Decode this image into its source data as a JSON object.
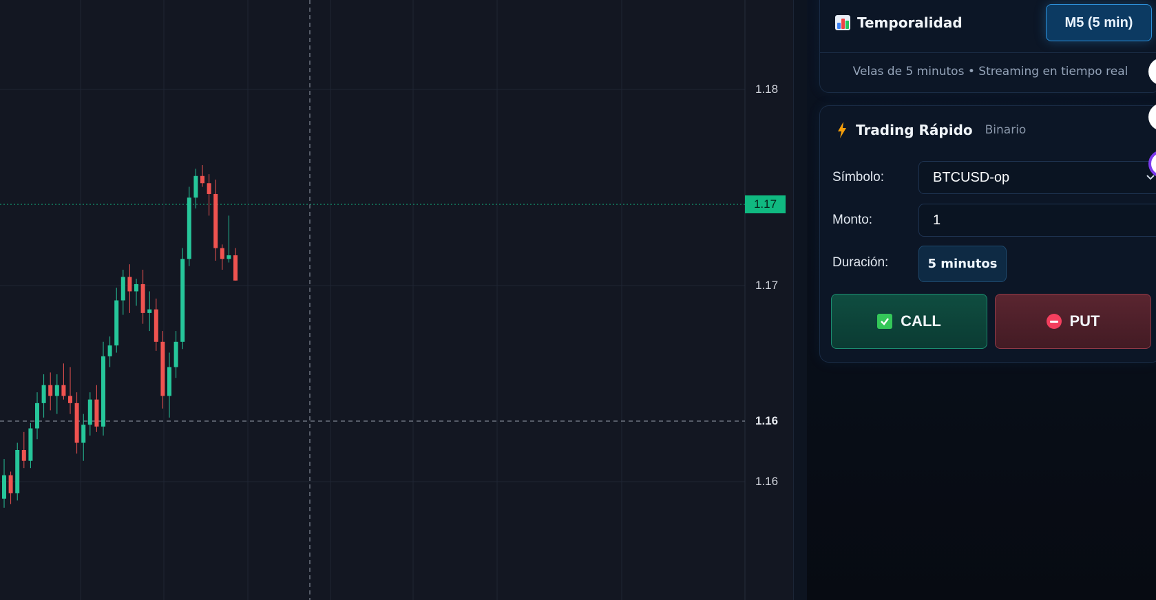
{
  "chart": {
    "price_labels": [
      "1.18",
      "1.17",
      "1.17",
      "1.16",
      "1.16"
    ],
    "current_price": "1.17",
    "up_color": "#26c69a",
    "down_color": "#ef5350",
    "candles": [
      [
        1.1573,
        1.1595,
        1.1568,
        1.1586
      ],
      [
        1.1586,
        1.1588,
        1.157,
        1.1576
      ],
      [
        1.1576,
        1.1604,
        1.1572,
        1.16
      ],
      [
        1.16,
        1.161,
        1.159,
        1.1594
      ],
      [
        1.1594,
        1.1615,
        1.159,
        1.1612
      ],
      [
        1.1612,
        1.1632,
        1.1606,
        1.1626
      ],
      [
        1.1626,
        1.1642,
        1.1618,
        1.1636
      ],
      [
        1.1636,
        1.1643,
        1.1622,
        1.163
      ],
      [
        1.163,
        1.1642,
        1.162,
        1.1636
      ],
      [
        1.1636,
        1.1648,
        1.1628,
        1.163
      ],
      [
        1.163,
        1.1646,
        1.162,
        1.1626
      ],
      [
        1.1626,
        1.1632,
        1.1598,
        1.1604
      ],
      [
        1.1604,
        1.162,
        1.1594,
        1.1614
      ],
      [
        1.1614,
        1.1632,
        1.1608,
        1.1628
      ],
      [
        1.1628,
        1.1636,
        1.161,
        1.1613
      ],
      [
        1.1613,
        1.166,
        1.1608,
        1.1652
      ],
      [
        1.1652,
        1.1663,
        1.1646,
        1.1658
      ],
      [
        1.1658,
        1.169,
        1.1654,
        1.1683
      ],
      [
        1.1683,
        1.17,
        1.1675,
        1.1696
      ],
      [
        1.1696,
        1.1703,
        1.1676,
        1.1688
      ],
      [
        1.1688,
        1.1695,
        1.168,
        1.1692
      ],
      [
        1.1692,
        1.17,
        1.167,
        1.1676
      ],
      [
        1.1676,
        1.1688,
        1.1666,
        1.1678
      ],
      [
        1.1678,
        1.1684,
        1.1655,
        1.166
      ],
      [
        1.166,
        1.1666,
        1.1623,
        1.163
      ],
      [
        1.163,
        1.1654,
        1.1618,
        1.1646
      ],
      [
        1.1646,
        1.1666,
        1.164,
        1.166
      ],
      [
        1.166,
        1.1712,
        1.1656,
        1.1706
      ],
      [
        1.1706,
        1.1746,
        1.1702,
        1.174
      ],
      [
        1.174,
        1.1756,
        1.1734,
        1.1752
      ],
      [
        1.1752,
        1.1758,
        1.1746,
        1.1748
      ],
      [
        1.1748,
        1.1753,
        1.173,
        1.1742
      ],
      [
        1.1742,
        1.175,
        1.1705,
        1.1712
      ],
      [
        1.1712,
        1.1714,
        1.17,
        1.1706
      ],
      [
        1.1706,
        1.173,
        1.1704,
        1.1708
      ],
      [
        1.1708,
        1.1712,
        1.1694,
        1.1694
      ]
    ]
  },
  "timeframe": {
    "title": "Temporalidad",
    "button_label": "M5 (5 min)",
    "caption": "Velas de 5 minutos • Streaming en tiempo real"
  },
  "trading": {
    "title": "Trading Rápido",
    "subtitle": "Binario",
    "symbol_label": "Símbolo:",
    "symbol_value": "BTCUSD-op",
    "amount_label": "Monto:",
    "amount_value": "1",
    "duration_label": "Duración:",
    "duration_value": "5 minutos",
    "call_label": "CALL",
    "put_label": "PUT"
  }
}
